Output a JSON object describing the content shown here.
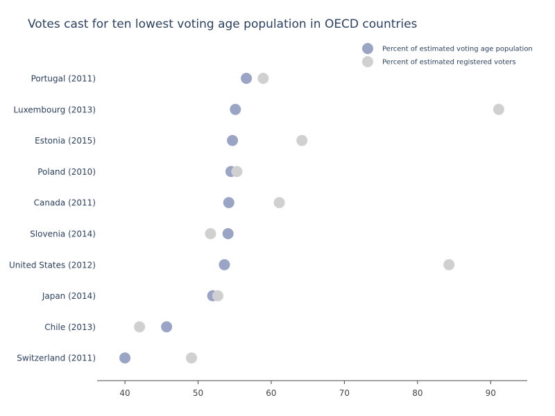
{
  "chart_data": {
    "type": "scatter",
    "title": "Votes cast for ten lowest voting age population in OECD countries",
    "xlabel": "",
    "ylabel": "",
    "xlim": [
      36.2,
      95
    ],
    "xticks": [
      40,
      50,
      60,
      70,
      80,
      90
    ],
    "grid": false,
    "legend_position": "top-right",
    "categories": [
      "Switzerland (2011)",
      "Chile (2013)",
      "Japan (2014)",
      "United States (2012)",
      "Slovenia (2014)",
      "Canada (2011)",
      "Poland (2010)",
      "Estonia (2015)",
      "Luxembourg (2013)",
      "Portugal (2011)"
    ],
    "series": [
      {
        "name": "Percent of estimated voting age population",
        "color": "#9aa5c6",
        "values": [
          40.0,
          45.7,
          52.0,
          53.6,
          54.1,
          54.2,
          54.5,
          54.7,
          55.1,
          56.6
        ]
      },
      {
        "name": "Percent of estimated registered voters",
        "color": "#d0d0d0",
        "values": [
          49.1,
          42.0,
          52.7,
          84.3,
          51.7,
          61.1,
          55.3,
          64.2,
          91.1,
          58.9
        ]
      }
    ]
  }
}
